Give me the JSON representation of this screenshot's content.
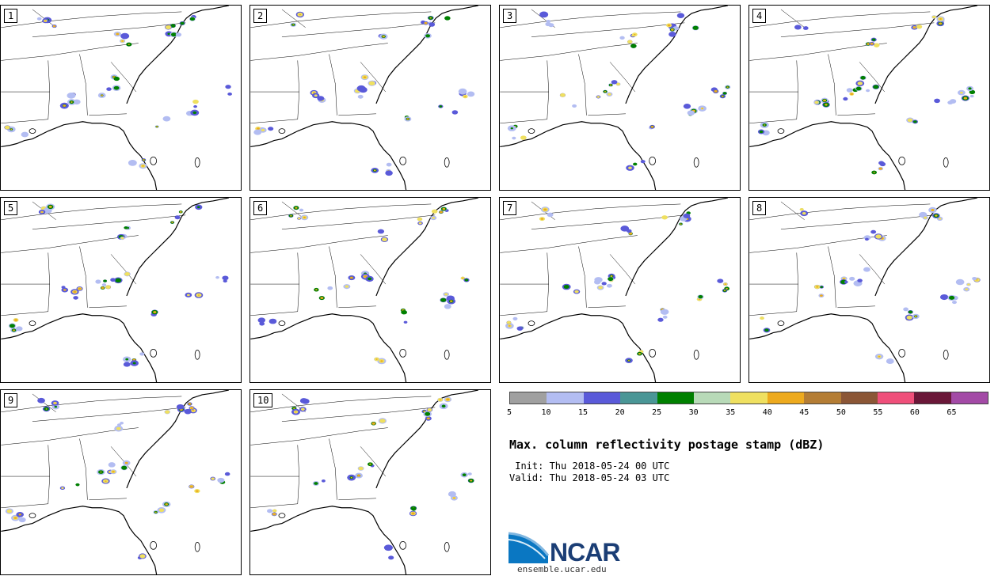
{
  "panels": [
    {
      "label": "1"
    },
    {
      "label": "2"
    },
    {
      "label": "3"
    },
    {
      "label": "4"
    },
    {
      "label": "5"
    },
    {
      "label": "6"
    },
    {
      "label": "7"
    },
    {
      "label": "8"
    },
    {
      "label": "9"
    },
    {
      "label": "10"
    }
  ],
  "colorbar": {
    "colors": [
      "#a0a0a0",
      "#b3bdf2",
      "#5a5ad9",
      "#4a9696",
      "#008000",
      "#b8dab8",
      "#efe060",
      "#edaa1e",
      "#b47d35",
      "#8b5636",
      "#ef4f7a",
      "#6a1738",
      "#a34aa6"
    ],
    "ticks": [
      "5",
      "10",
      "15",
      "20",
      "25",
      "30",
      "35",
      "40",
      "45",
      "50",
      "55",
      "60",
      "65"
    ]
  },
  "title": "Max. column reflectivity postage stamp (dBZ)",
  "init": " Init: Thu 2018-05-24 00 UTC",
  "valid": "Valid: Thu 2018-05-24 03 UTC",
  "logo": {
    "text": "NCAR",
    "site": "ensemble.ucar.edu"
  }
}
